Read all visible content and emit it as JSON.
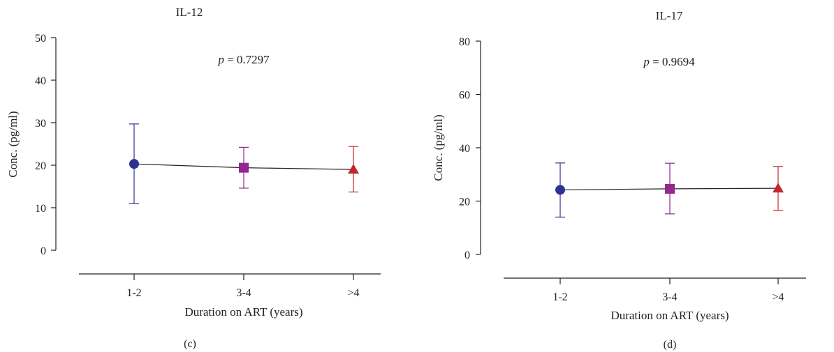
{
  "chart_data": [
    {
      "type": "line",
      "panel_label": "(c)",
      "title": "IL-12",
      "annotation": {
        "p_symbol": "p",
        "equals": "=",
        "p_value": "0.7297"
      },
      "xlabel": "Duration on ART (years)",
      "ylabel": "Conc. (pg/ml)",
      "categories": [
        "1-2",
        "3-4",
        ">4"
      ],
      "ylim": [
        0,
        50
      ],
      "yticks": [
        "0",
        "10",
        "20",
        "30",
        "40",
        "50"
      ],
      "grid": false,
      "series": [
        {
          "values": [
            20.3,
            19.4,
            19.0
          ],
          "error_low": [
            11.0,
            14.6,
            13.7
          ],
          "error_high": [
            29.7,
            24.2,
            24.4
          ],
          "markers": [
            "circle",
            "square",
            "triangle"
          ],
          "colors": [
            "#2e3192",
            "#92278f",
            "#c1272d"
          ]
        }
      ]
    },
    {
      "type": "line",
      "panel_label": "(d)",
      "title": "IL-17",
      "annotation": {
        "p_symbol": "p",
        "equals": "=",
        "p_value": "0.9694"
      },
      "xlabel": "Duration on ART (years)",
      "ylabel": "Conc. (pg/ml)",
      "categories": [
        "1-2",
        "3-4",
        ">4"
      ],
      "ylim": [
        0,
        80
      ],
      "yticks": [
        "0",
        "20",
        "40",
        "60",
        "80"
      ],
      "grid": false,
      "series": [
        {
          "values": [
            24.2,
            24.6,
            24.8
          ],
          "error_low": [
            14.0,
            15.2,
            16.5
          ],
          "error_high": [
            34.3,
            34.2,
            33.0
          ],
          "markers": [
            "circle",
            "square",
            "triangle"
          ],
          "colors": [
            "#2e3192",
            "#92278f",
            "#c1272d"
          ]
        }
      ]
    }
  ]
}
